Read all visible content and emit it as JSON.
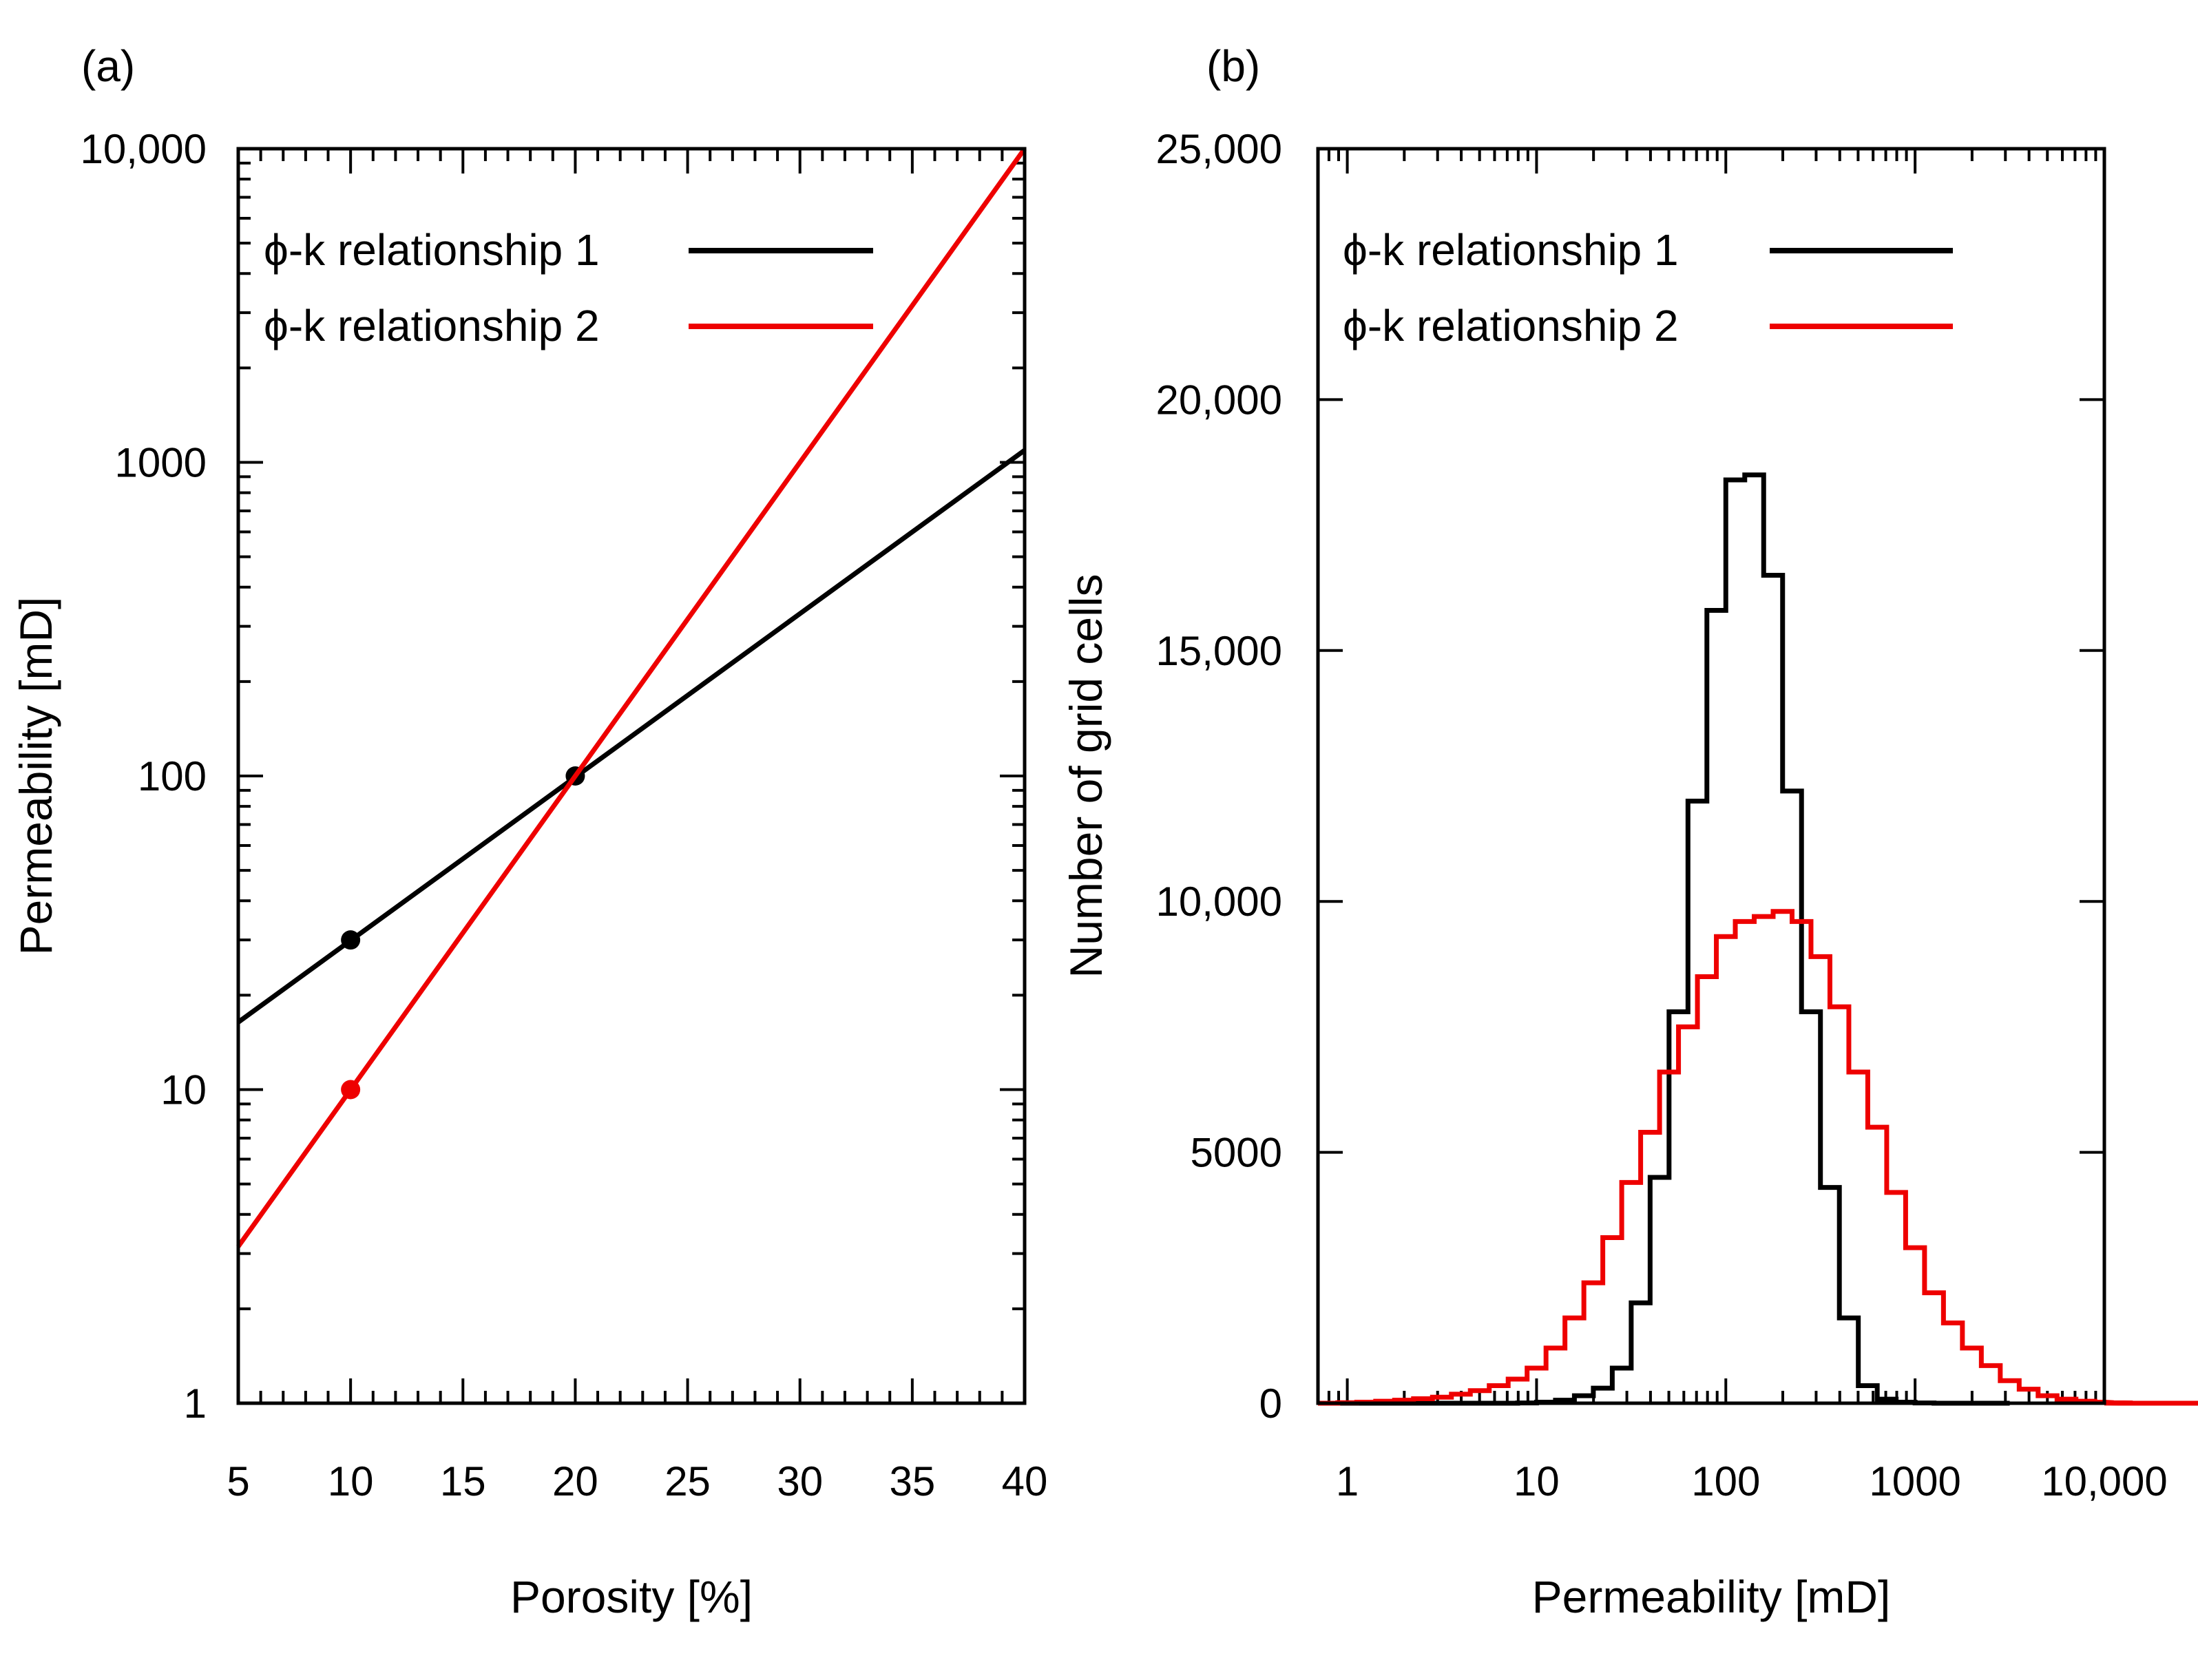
{
  "chart_data": [
    {
      "panel": "(a)",
      "type": "line",
      "title": "",
      "xlabel": "Porosity [%]",
      "ylabel": "Permeability [mD]",
      "xlim": [
        5,
        40
      ],
      "ylim": [
        1,
        10000
      ],
      "yscale": "log",
      "x_ticks": [
        5,
        10,
        15,
        20,
        25,
        30,
        35,
        40
      ],
      "x_tick_labels": [
        "5",
        "10",
        "15",
        "20",
        "25",
        "30",
        "35",
        "40"
      ],
      "y_ticks": [
        1,
        10,
        100,
        1000,
        10000
      ],
      "y_tick_labels": [
        "1",
        "10",
        "100",
        "1000",
        "10,000"
      ],
      "legend_position": "top-left",
      "series": [
        {
          "name": "ϕ-k relationship 1",
          "color": "#000000",
          "x": [
            5,
            40
          ],
          "y": [
            16.4,
            1093
          ],
          "points": {
            "x": [
              10,
              20
            ],
            "y": [
              30,
              100
            ]
          }
        },
        {
          "name": "ϕ-k relationship 2",
          "color": "#ee0000",
          "x": [
            5,
            40
          ],
          "y": [
            3.16,
            10000
          ],
          "points": {
            "x": [
              10
            ],
            "y": [
              10
            ]
          }
        }
      ]
    },
    {
      "panel": "(b)",
      "type": "histogram",
      "title": "",
      "xlabel": "Permeability [mD]",
      "ylabel": "Number of grid cells",
      "xlim": [
        0.7,
        10000
      ],
      "xscale": "log",
      "ylim": [
        0,
        25000
      ],
      "x_ticks": [
        1,
        10,
        100,
        1000,
        10000
      ],
      "x_tick_labels": [
        "1",
        "10",
        "100",
        "1000",
        "10,000"
      ],
      "y_ticks": [
        0,
        5000,
        10000,
        15000,
        20000,
        25000
      ],
      "y_tick_labels": [
        "0",
        "5000",
        "10,000",
        "15,000",
        "20,000",
        "25,000"
      ],
      "legend_position": "top-left",
      "bin_log_width": 0.1,
      "series": [
        {
          "name": "ϕ-k relationship 1",
          "color": "#000000",
          "bin_start_log10": 0.5,
          "counts": [
            0,
            0,
            0,
            0,
            5,
            20,
            60,
            150,
            300,
            700,
            2000,
            4500,
            7800,
            12000,
            15800,
            18400,
            18500,
            16500,
            12200,
            7800,
            4300,
            1700,
            350,
            80,
            20,
            5,
            0,
            0,
            0,
            0
          ]
        },
        {
          "name": "ϕ-k relationship 2",
          "color": "#ee0000",
          "bin_start_log10": -0.15,
          "counts": [
            0,
            10,
            20,
            40,
            60,
            90,
            120,
            180,
            250,
            350,
            480,
            700,
            1100,
            1700,
            2400,
            3300,
            4400,
            5400,
            6600,
            7500,
            8500,
            9300,
            9600,
            9700,
            9800,
            9600,
            8900,
            7900,
            6600,
            5500,
            4200,
            3100,
            2200,
            1600,
            1100,
            750,
            450,
            280,
            150,
            80,
            40,
            20,
            10,
            5,
            0,
            0,
            0,
            0,
            0,
            0
          ]
        }
      ]
    }
  ]
}
